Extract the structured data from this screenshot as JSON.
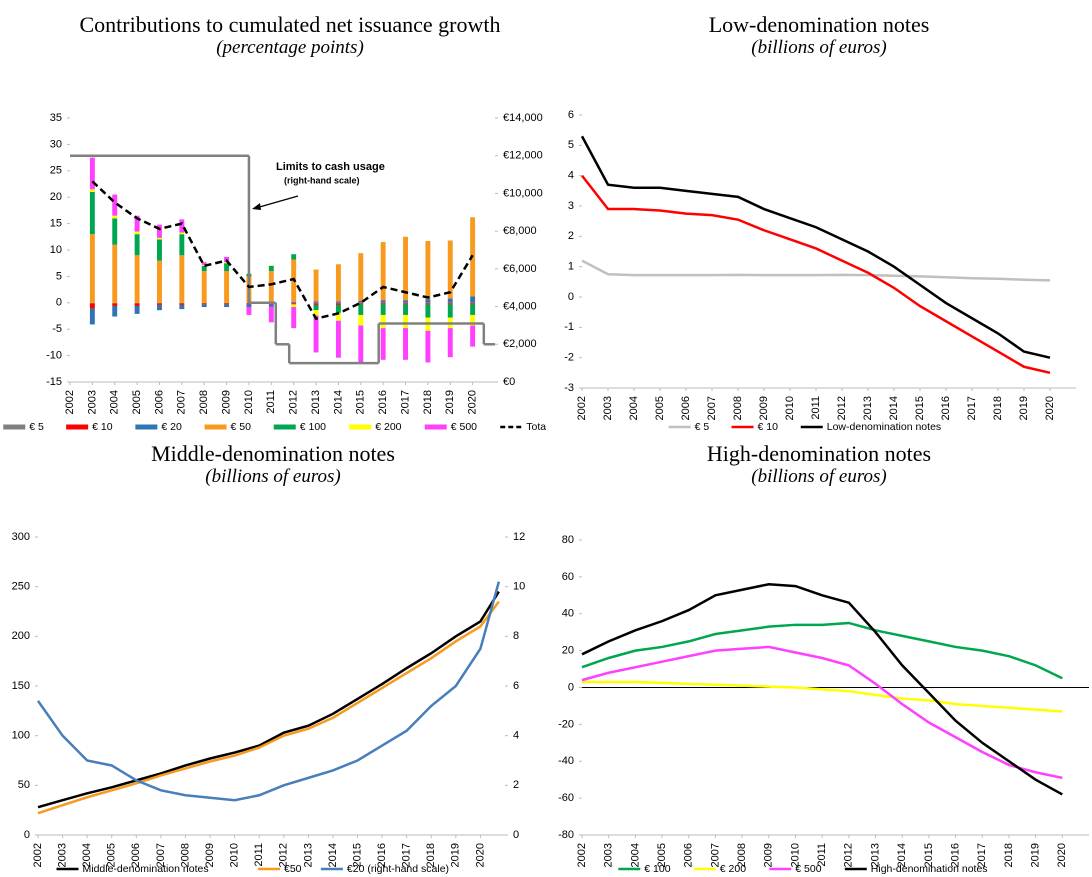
{
  "chart_data": [
    {
      "type": "bar",
      "title": "Contributions to cumulated net issuance growth",
      "subtitle": "(percentage points)",
      "x": [
        2003,
        2004,
        2005,
        2006,
        2007,
        2008,
        2009,
        2010,
        2011,
        2012,
        2013,
        2014,
        2015,
        2016,
        2017,
        2018,
        2019,
        2020
      ],
      "xlim": [
        2002,
        2021
      ],
      "xticks": [
        2002,
        2003,
        2004,
        2005,
        2006,
        2007,
        2008,
        2009,
        2010,
        2011,
        2012,
        2013,
        2014,
        2015,
        2016,
        2017,
        2018,
        2019,
        2020
      ],
      "ylim": [
        -15,
        35
      ],
      "yticks": [
        -15,
        -10,
        -5,
        0,
        5,
        10,
        15,
        20,
        25,
        30,
        35
      ],
      "y2lim": [
        0,
        14000
      ],
      "y2ticks": [
        {
          "value": 0,
          "label": "€0"
        },
        {
          "value": 2000,
          "label": "€2,000"
        },
        {
          "value": 4000,
          "label": "€4,000"
        },
        {
          "value": 6000,
          "label": "€6,000"
        },
        {
          "value": 8000,
          "label": "€8,000"
        },
        {
          "value": 10000,
          "label": "€10,000"
        },
        {
          "value": 12000,
          "label": "€12,000"
        },
        {
          "value": 14000,
          "label": "€14,000"
        }
      ],
      "series": [
        {
          "name": "€ 5",
          "color": "#808080",
          "mark": "bar",
          "values": [
            -0.1,
            -0.1,
            -0.1,
            -0.1,
            -0.1,
            -0.1,
            -0.1,
            -0.1,
            -0.1,
            -0.1,
            -0.1,
            -0.1,
            -0.1,
            -0.1,
            -0.1,
            -0.1,
            -0.1,
            -0.1
          ]
        },
        {
          "name": "€ 10",
          "color": "#ff0000",
          "mark": "bar",
          "values": [
            -1,
            -0.5,
            -0.5,
            -0.3,
            -0.3,
            -0.2,
            -0.2,
            -0.2,
            -0.2,
            -0.2,
            -0.3,
            -0.3,
            -0.2,
            -0.2,
            -0.2,
            -0.2,
            -0.2,
            -0.2
          ]
        },
        {
          "name": "€ 20",
          "color": "#2e75b6",
          "mark": "bar",
          "values": [
            -3,
            -2,
            -1.5,
            -1,
            -0.8,
            -0.5,
            -0.5,
            -0.5,
            -0.4,
            0.2,
            0.3,
            0.3,
            0.4,
            0.5,
            0.5,
            0.7,
            0.8,
            1.2
          ]
        },
        {
          "name": "€ 50",
          "color": "#f79a1e",
          "mark": "bar",
          "values": [
            13,
            11,
            9,
            8,
            9,
            6,
            6,
            5,
            6,
            8,
            6,
            7,
            9,
            11,
            12,
            11,
            11,
            15
          ]
        },
        {
          "name": "€ 100",
          "color": "#00a650",
          "mark": "bar",
          "values": [
            8,
            5,
            4,
            4,
            4,
            1,
            1.5,
            0.5,
            1,
            1,
            -1,
            -1.5,
            -2,
            -2,
            -2,
            -2.5,
            -2.5,
            -2
          ]
        },
        {
          "name": "€ 200",
          "color": "#ffff00",
          "mark": "bar",
          "values": [
            0.5,
            0.5,
            0.5,
            0.3,
            0.3,
            0.2,
            0.2,
            0.1,
            0.1,
            -0.5,
            -1,
            -1.5,
            -2,
            -2.5,
            -2.5,
            -2.5,
            -2,
            -2
          ]
        },
        {
          "name": "€ 500",
          "color": "#ff40ff",
          "mark": "bar",
          "values": [
            6,
            4,
            3,
            2.5,
            2.5,
            0.5,
            1,
            -1.5,
            -3,
            -4,
            -7,
            -7,
            -7,
            -6,
            -6,
            -6,
            -5.5,
            -4
          ]
        },
        {
          "name": "Total",
          "color": "#000000",
          "mark": "line",
          "dashed": true,
          "values": [
            23,
            19,
            16,
            14,
            15,
            7,
            8,
            3,
            3.5,
            4.5,
            -3,
            -2,
            0,
            3,
            2,
            1,
            2,
            9
          ]
        }
      ],
      "limits": {
        "x": [
          2002,
          2010,
          2011.2,
          2011.8,
          2015.8,
          2020.5
        ],
        "values": [
          12000,
          4200,
          2000,
          1000,
          3100,
          2000
        ],
        "axis": "y2",
        "color": "#808080"
      },
      "annotation": [
        "Limits to cash usage",
        "(right-hand scale)"
      ]
    },
    {
      "type": "line",
      "title": "Low-denomination notes",
      "subtitle": "(billions of euros)",
      "x": [
        2002,
        2003,
        2004,
        2005,
        2006,
        2007,
        2008,
        2009,
        2010,
        2011,
        2012,
        2013,
        2014,
        2015,
        2016,
        2017,
        2018,
        2019,
        2020
      ],
      "xlim": [
        2002,
        2021
      ],
      "xticks": [
        2002,
        2003,
        2004,
        2005,
        2006,
        2007,
        2008,
        2009,
        2010,
        2011,
        2012,
        2013,
        2014,
        2015,
        2016,
        2017,
        2018,
        2019,
        2020
      ],
      "ylim": [
        -3,
        6
      ],
      "yticks": [
        -3,
        -2,
        -1,
        0,
        1,
        2,
        3,
        4,
        5,
        6
      ],
      "series": [
        {
          "name": "€ 5",
          "color": "#c0c0c0",
          "values": [
            1.2,
            0.75,
            0.72,
            0.72,
            0.72,
            0.72,
            0.73,
            0.72,
            0.72,
            0.72,
            0.73,
            0.72,
            0.7,
            0.68,
            0.65,
            0.62,
            0.6,
            0.57,
            0.55
          ]
        },
        {
          "name": "€ 10",
          "color": "#ff0000",
          "values": [
            4.0,
            2.9,
            2.9,
            2.85,
            2.75,
            2.7,
            2.55,
            2.2,
            1.9,
            1.6,
            1.2,
            0.8,
            0.3,
            -0.3,
            -0.8,
            -1.3,
            -1.8,
            -2.3,
            -2.5
          ]
        },
        {
          "name": "Low-denomination notes",
          "color": "#000000",
          "values": [
            5.3,
            3.7,
            3.6,
            3.6,
            3.5,
            3.4,
            3.3,
            2.9,
            2.6,
            2.3,
            1.9,
            1.5,
            1.0,
            0.4,
            -0.2,
            -0.7,
            -1.2,
            -1.8,
            -2.0
          ]
        }
      ]
    },
    {
      "type": "line",
      "title": "Middle-denomination notes",
      "subtitle": "(billions of euros)",
      "x": [
        2002,
        2003,
        2004,
        2005,
        2006,
        2007,
        2008,
        2009,
        2010,
        2011,
        2012,
        2013,
        2014,
        2015,
        2016,
        2017,
        2018,
        2019,
        2020,
        2020.75
      ],
      "xlim": [
        2002,
        2021
      ],
      "xticks": [
        2002,
        2003,
        2004,
        2005,
        2006,
        2007,
        2008,
        2009,
        2010,
        2011,
        2012,
        2013,
        2014,
        2015,
        2016,
        2017,
        2018,
        2019,
        2020
      ],
      "ylim": [
        0,
        300
      ],
      "yticks": [
        0,
        50,
        100,
        150,
        200,
        250,
        300
      ],
      "y2lim": [
        0,
        12
      ],
      "y2ticks": [
        0,
        2,
        4,
        6,
        8,
        10,
        12
      ],
      "series": [
        {
          "name": "Middle-denomination notes",
          "color": "#000000",
          "values": [
            28,
            35,
            42,
            48,
            55,
            62,
            70,
            77,
            83,
            90,
            103,
            110,
            122,
            137,
            152,
            168,
            183,
            200,
            215,
            245
          ]
        },
        {
          "name": "€50",
          "color": "#f79a1e",
          "values": [
            22,
            30,
            38,
            45,
            52,
            60,
            67,
            74,
            80,
            88,
            100,
            107,
            118,
            133,
            148,
            163,
            178,
            195,
            210,
            235
          ]
        },
        {
          "name": "€20 (right-hand scale)",
          "color": "#4a7ebb",
          "axis": "y2",
          "values": [
            5.4,
            4.0,
            3.0,
            2.8,
            2.2,
            1.8,
            1.6,
            1.5,
            1.4,
            1.6,
            2.0,
            2.3,
            2.6,
            3.0,
            3.6,
            4.2,
            5.2,
            6.0,
            7.5,
            10.2
          ]
        }
      ]
    },
    {
      "type": "line",
      "title": "High-denomination notes",
      "subtitle": "(billions of euros)",
      "x": [
        2002,
        2003,
        2004,
        2005,
        2006,
        2007,
        2008,
        2009,
        2010,
        2011,
        2012,
        2013,
        2014,
        2015,
        2016,
        2017,
        2018,
        2019,
        2020
      ],
      "xlim": [
        2002,
        2021
      ],
      "xticks": [
        2002,
        2003,
        2004,
        2005,
        2006,
        2007,
        2008,
        2009,
        2010,
        2011,
        2012,
        2013,
        2014,
        2015,
        2016,
        2017,
        2018,
        2019,
        2020
      ],
      "ylim": [
        -80,
        80
      ],
      "yticks": [
        -80,
        -60,
        -40,
        -20,
        0,
        20,
        40,
        60,
        80
      ],
      "zero_line": true,
      "series": [
        {
          "name": "€ 100",
          "color": "#00a650",
          "values": [
            11,
            16,
            20,
            22,
            25,
            29,
            31,
            33,
            34,
            34,
            35,
            31,
            28,
            25,
            22,
            20,
            17,
            12,
            5
          ]
        },
        {
          "name": "€ 200",
          "color": "#ffff00",
          "values": [
            3,
            3,
            3,
            2.5,
            2,
            1.5,
            1,
            0.5,
            0,
            -1,
            -2,
            -4,
            -6,
            -7,
            -9,
            -10,
            -11,
            -12,
            -13
          ]
        },
        {
          "name": "€ 500",
          "color": "#ff40ff",
          "values": [
            4,
            8,
            11,
            14,
            17,
            20,
            21,
            22,
            19,
            16,
            12,
            2,
            -9,
            -19,
            -27,
            -35,
            -42,
            -46,
            -49
          ]
        },
        {
          "name": "High-denomination notes",
          "color": "#000000",
          "values": [
            18,
            25,
            31,
            36,
            42,
            50,
            53,
            56,
            55,
            50,
            46,
            30,
            12,
            -3,
            -18,
            -30,
            -40,
            -50,
            -58
          ]
        }
      ]
    }
  ]
}
